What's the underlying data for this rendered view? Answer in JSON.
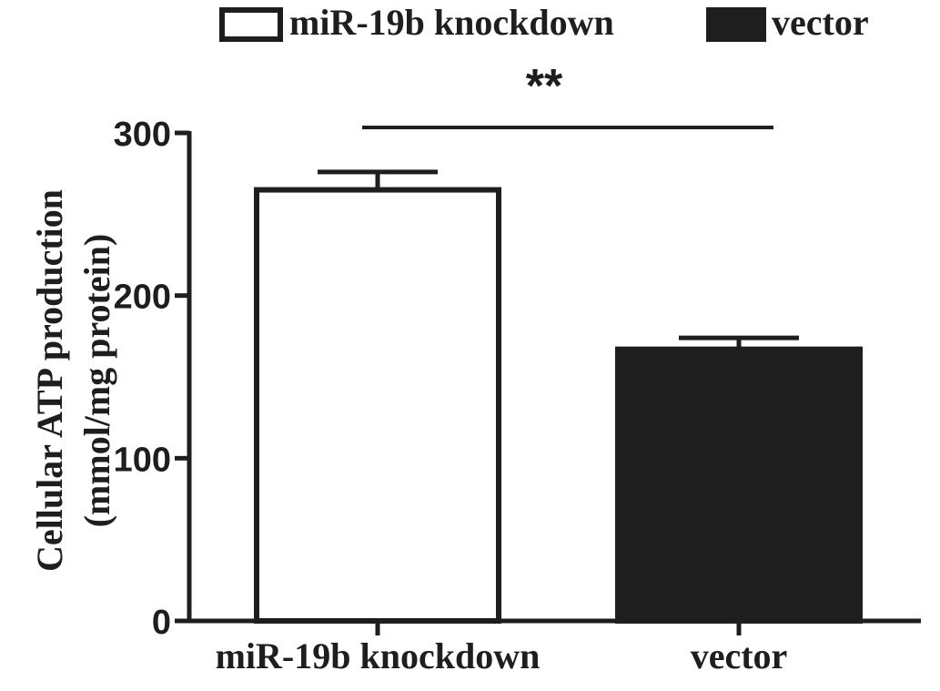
{
  "chart_data": {
    "type": "bar",
    "categories": [
      "miR-19b knockdown",
      "vector"
    ],
    "values": [
      265,
      167
    ],
    "errors": [
      11,
      7
    ],
    "ylabel_line1": "Cellular ATP production",
    "ylabel_line2": "(mmol/mg protein)",
    "ylim": [
      0,
      300
    ],
    "yticks": [
      0,
      100,
      200,
      300
    ],
    "ytick_labels": [
      "0",
      "100",
      "200",
      "300"
    ],
    "legend": {
      "placement": "top",
      "entries": [
        {
          "label": "miR-19b knockdown",
          "fill": "#ffffff"
        },
        {
          "label": "vector",
          "fill": "#1e1e1e"
        }
      ]
    },
    "significance": {
      "label": "**",
      "between": [
        0,
        1
      ]
    },
    "grid": false,
    "colors": {
      "bar_knockdown_fill": "#ffffff",
      "bar_vector_fill": "#1e1e1e",
      "stroke": "#1e1e1e"
    }
  }
}
